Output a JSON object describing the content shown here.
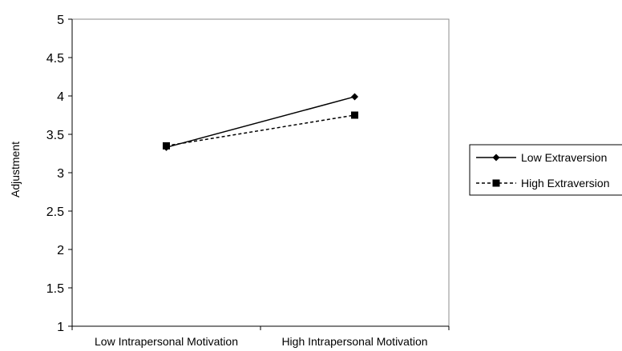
{
  "chart_data": {
    "type": "line",
    "categories": [
      "Low Intrapersonal Motivation",
      "High Intrapersonal Motivation"
    ],
    "series": [
      {
        "name": "Low Extraversion",
        "values": [
          3.33,
          3.99
        ],
        "marker": "diamond",
        "line": "solid",
        "color": "#000000"
      },
      {
        "name": "High Extraversion",
        "values": [
          3.35,
          3.75
        ],
        "marker": "square",
        "line": "dashed",
        "color": "#000000"
      }
    ],
    "title": "",
    "xlabel": "",
    "ylabel": "Adjustment",
    "ylim": [
      1,
      5
    ],
    "yticks": [
      "1",
      "1.5",
      "2",
      "2.5",
      "3",
      "3.5",
      "4",
      "4.5",
      "5"
    ],
    "grid": false,
    "legend": "right"
  }
}
